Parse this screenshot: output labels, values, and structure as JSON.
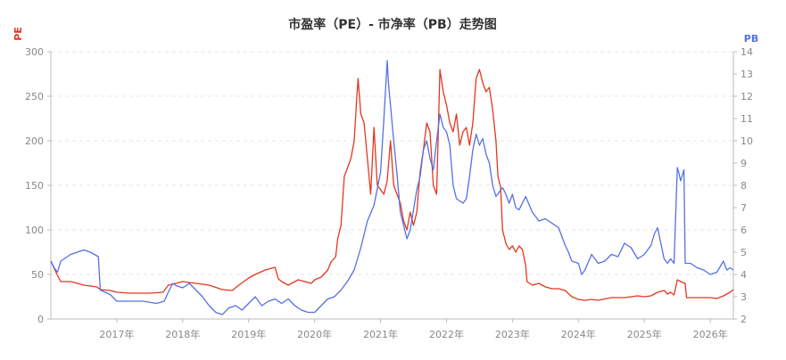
{
  "chart_data": {
    "type": "line",
    "title": "市盈率（PE）- 市净率（PB）走势图",
    "ylabel_left": "PE",
    "ylabel_right": "PB",
    "colors": {
      "pe": "#e5361e",
      "pb": "#5470e6"
    },
    "y_left": {
      "min": 0,
      "max": 300,
      "ticks": [
        0,
        50,
        100,
        150,
        200,
        250,
        300
      ]
    },
    "y_right": {
      "min": 2,
      "max": 14,
      "ticks": [
        2,
        3,
        4,
        5,
        6,
        7,
        8,
        9,
        10,
        11,
        12,
        13,
        14
      ]
    },
    "x": {
      "min": 2016.0,
      "max": 2026.35,
      "tick_labels": [
        "2017年",
        "2018年",
        "2019年",
        "2020年",
        "2021年",
        "2022年",
        "2023年",
        "2024年",
        "2025年",
        "2026年"
      ],
      "tick_values": [
        2017,
        2018,
        2019,
        2020,
        2021,
        2022,
        2023,
        2024,
        2025,
        2026
      ]
    },
    "series": [
      {
        "key": "pe",
        "axis": "left",
        "points": [
          [
            2016.0,
            65
          ],
          [
            2016.08,
            52
          ],
          [
            2016.15,
            42
          ],
          [
            2016.3,
            42
          ],
          [
            2016.5,
            38
          ],
          [
            2016.7,
            36
          ],
          [
            2016.75,
            33
          ],
          [
            2016.9,
            32
          ],
          [
            2017.0,
            30
          ],
          [
            2017.2,
            29
          ],
          [
            2017.5,
            29
          ],
          [
            2017.7,
            30
          ],
          [
            2017.78,
            38
          ],
          [
            2017.9,
            40
          ],
          [
            2018.0,
            42
          ],
          [
            2018.2,
            40
          ],
          [
            2018.4,
            38
          ],
          [
            2018.6,
            33
          ],
          [
            2018.75,
            32
          ],
          [
            2018.85,
            38
          ],
          [
            2019.0,
            46
          ],
          [
            2019.1,
            50
          ],
          [
            2019.25,
            55
          ],
          [
            2019.4,
            58
          ],
          [
            2019.45,
            45
          ],
          [
            2019.5,
            42
          ],
          [
            2019.6,
            38
          ],
          [
            2019.75,
            44
          ],
          [
            2019.85,
            42
          ],
          [
            2019.95,
            40
          ],
          [
            2020.0,
            44
          ],
          [
            2020.1,
            47
          ],
          [
            2020.2,
            55
          ],
          [
            2020.25,
            64
          ],
          [
            2020.32,
            70
          ],
          [
            2020.35,
            90
          ],
          [
            2020.4,
            105
          ],
          [
            2020.45,
            160
          ],
          [
            2020.5,
            170
          ],
          [
            2020.55,
            180
          ],
          [
            2020.6,
            200
          ],
          [
            2020.64,
            250
          ],
          [
            2020.66,
            270
          ],
          [
            2020.7,
            230
          ],
          [
            2020.75,
            220
          ],
          [
            2020.8,
            180
          ],
          [
            2020.85,
            140
          ],
          [
            2020.9,
            215
          ],
          [
            2020.95,
            150
          ],
          [
            2021.0,
            145
          ],
          [
            2021.05,
            140
          ],
          [
            2021.1,
            155
          ],
          [
            2021.15,
            200
          ],
          [
            2021.2,
            150
          ],
          [
            2021.25,
            140
          ],
          [
            2021.3,
            130
          ],
          [
            2021.35,
            110
          ],
          [
            2021.4,
            100
          ],
          [
            2021.45,
            120
          ],
          [
            2021.5,
            105
          ],
          [
            2021.55,
            120
          ],
          [
            2021.6,
            165
          ],
          [
            2021.65,
            190
          ],
          [
            2021.7,
            220
          ],
          [
            2021.75,
            210
          ],
          [
            2021.8,
            150
          ],
          [
            2021.85,
            140
          ],
          [
            2021.9,
            280
          ],
          [
            2021.95,
            255
          ],
          [
            2022.0,
            240
          ],
          [
            2022.05,
            220
          ],
          [
            2022.1,
            210
          ],
          [
            2022.15,
            230
          ],
          [
            2022.2,
            195
          ],
          [
            2022.25,
            210
          ],
          [
            2022.3,
            215
          ],
          [
            2022.35,
            195
          ],
          [
            2022.4,
            220
          ],
          [
            2022.45,
            270
          ],
          [
            2022.5,
            280
          ],
          [
            2022.55,
            265
          ],
          [
            2022.6,
            255
          ],
          [
            2022.65,
            260
          ],
          [
            2022.7,
            235
          ],
          [
            2022.75,
            200
          ],
          [
            2022.78,
            160
          ],
          [
            2022.82,
            148
          ],
          [
            2022.85,
            100
          ],
          [
            2022.9,
            85
          ],
          [
            2022.95,
            78
          ],
          [
            2023.0,
            82
          ],
          [
            2023.05,
            75
          ],
          [
            2023.1,
            82
          ],
          [
            2023.15,
            78
          ],
          [
            2023.2,
            60
          ],
          [
            2023.22,
            42
          ],
          [
            2023.3,
            38
          ],
          [
            2023.4,
            40
          ],
          [
            2023.5,
            36
          ],
          [
            2023.6,
            34
          ],
          [
            2023.7,
            34
          ],
          [
            2023.8,
            32
          ],
          [
            2023.9,
            25
          ],
          [
            2024.0,
            22
          ],
          [
            2024.1,
            21
          ],
          [
            2024.2,
            22
          ],
          [
            2024.3,
            21
          ],
          [
            2024.5,
            24
          ],
          [
            2024.7,
            24
          ],
          [
            2024.9,
            26
          ],
          [
            2025.0,
            25
          ],
          [
            2025.1,
            26
          ],
          [
            2025.2,
            30
          ],
          [
            2025.3,
            32
          ],
          [
            2025.35,
            28
          ],
          [
            2025.4,
            30
          ],
          [
            2025.45,
            27
          ],
          [
            2025.5,
            44
          ],
          [
            2025.55,
            42
          ],
          [
            2025.62,
            40
          ],
          [
            2025.64,
            24
          ],
          [
            2025.8,
            24
          ],
          [
            2026.0,
            24
          ],
          [
            2026.1,
            23
          ],
          [
            2026.2,
            26
          ],
          [
            2026.3,
            30
          ],
          [
            2026.35,
            33
          ]
        ]
      },
      {
        "key": "pb",
        "axis": "right",
        "points": [
          [
            2016.0,
            4.6
          ],
          [
            2016.05,
            4.3
          ],
          [
            2016.1,
            4.1
          ],
          [
            2016.15,
            4.6
          ],
          [
            2016.2,
            4.7
          ],
          [
            2016.3,
            4.9
          ],
          [
            2016.4,
            5.0
          ],
          [
            2016.5,
            5.1
          ],
          [
            2016.6,
            5.0
          ],
          [
            2016.72,
            4.8
          ],
          [
            2016.75,
            3.3
          ],
          [
            2016.9,
            3.1
          ],
          [
            2017.0,
            2.8
          ],
          [
            2017.2,
            2.8
          ],
          [
            2017.4,
            2.8
          ],
          [
            2017.6,
            2.7
          ],
          [
            2017.72,
            2.8
          ],
          [
            2017.78,
            3.2
          ],
          [
            2017.85,
            3.6
          ],
          [
            2017.9,
            3.5
          ],
          [
            2018.0,
            3.4
          ],
          [
            2018.1,
            3.6
          ],
          [
            2018.2,
            3.3
          ],
          [
            2018.3,
            3.0
          ],
          [
            2018.4,
            2.6
          ],
          [
            2018.5,
            2.3
          ],
          [
            2018.6,
            2.2
          ],
          [
            2018.7,
            2.5
          ],
          [
            2018.8,
            2.6
          ],
          [
            2018.9,
            2.4
          ],
          [
            2019.0,
            2.7
          ],
          [
            2019.1,
            3.0
          ],
          [
            2019.2,
            2.6
          ],
          [
            2019.3,
            2.8
          ],
          [
            2019.4,
            2.9
          ],
          [
            2019.5,
            2.7
          ],
          [
            2019.6,
            2.9
          ],
          [
            2019.7,
            2.6
          ],
          [
            2019.8,
            2.4
          ],
          [
            2019.9,
            2.3
          ],
          [
            2020.0,
            2.3
          ],
          [
            2020.1,
            2.6
          ],
          [
            2020.2,
            2.9
          ],
          [
            2020.3,
            3.0
          ],
          [
            2020.4,
            3.3
          ],
          [
            2020.5,
            3.7
          ],
          [
            2020.6,
            4.2
          ],
          [
            2020.7,
            5.2
          ],
          [
            2020.8,
            6.4
          ],
          [
            2020.9,
            7.1
          ],
          [
            2021.0,
            8.6
          ],
          [
            2021.05,
            11.0
          ],
          [
            2021.1,
            13.6
          ],
          [
            2021.12,
            12.6
          ],
          [
            2021.2,
            10.0
          ],
          [
            2021.25,
            8.5
          ],
          [
            2021.3,
            6.8
          ],
          [
            2021.35,
            6.2
          ],
          [
            2021.4,
            5.6
          ],
          [
            2021.45,
            6.0
          ],
          [
            2021.5,
            6.9
          ],
          [
            2021.55,
            7.8
          ],
          [
            2021.6,
            8.4
          ],
          [
            2021.65,
            9.6
          ],
          [
            2021.7,
            10.0
          ],
          [
            2021.75,
            9.2
          ],
          [
            2021.8,
            8.7
          ],
          [
            2021.85,
            10.0
          ],
          [
            2021.9,
            11.2
          ],
          [
            2021.95,
            10.6
          ],
          [
            2022.0,
            10.4
          ],
          [
            2022.05,
            9.8
          ],
          [
            2022.1,
            8.0
          ],
          [
            2022.15,
            7.4
          ],
          [
            2022.2,
            7.3
          ],
          [
            2022.25,
            7.2
          ],
          [
            2022.3,
            7.4
          ],
          [
            2022.35,
            8.4
          ],
          [
            2022.4,
            9.6
          ],
          [
            2022.45,
            10.3
          ],
          [
            2022.5,
            9.8
          ],
          [
            2022.55,
            10.1
          ],
          [
            2022.6,
            9.4
          ],
          [
            2022.65,
            9.0
          ],
          [
            2022.7,
            8.0
          ],
          [
            2022.75,
            7.5
          ],
          [
            2022.8,
            7.7
          ],
          [
            2022.85,
            7.9
          ],
          [
            2022.9,
            7.6
          ],
          [
            2022.95,
            7.2
          ],
          [
            2023.0,
            7.6
          ],
          [
            2023.05,
            7.0
          ],
          [
            2023.1,
            6.9
          ],
          [
            2023.2,
            7.5
          ],
          [
            2023.3,
            6.8
          ],
          [
            2023.4,
            6.4
          ],
          [
            2023.5,
            6.5
          ],
          [
            2023.6,
            6.3
          ],
          [
            2023.7,
            6.1
          ],
          [
            2023.8,
            5.3
          ],
          [
            2023.85,
            5.0
          ],
          [
            2023.9,
            4.6
          ],
          [
            2024.0,
            4.5
          ],
          [
            2024.05,
            4.0
          ],
          [
            2024.1,
            4.2
          ],
          [
            2024.2,
            4.9
          ],
          [
            2024.3,
            4.5
          ],
          [
            2024.4,
            4.6
          ],
          [
            2024.5,
            4.9
          ],
          [
            2024.6,
            4.8
          ],
          [
            2024.7,
            5.4
          ],
          [
            2024.8,
            5.2
          ],
          [
            2024.9,
            4.7
          ],
          [
            2025.0,
            4.9
          ],
          [
            2025.1,
            5.3
          ],
          [
            2025.15,
            5.8
          ],
          [
            2025.2,
            6.1
          ],
          [
            2025.25,
            5.4
          ],
          [
            2025.3,
            4.7
          ],
          [
            2025.35,
            4.5
          ],
          [
            2025.4,
            4.7
          ],
          [
            2025.45,
            4.5
          ],
          [
            2025.5,
            8.8
          ],
          [
            2025.52,
            8.6
          ],
          [
            2025.55,
            8.2
          ],
          [
            2025.6,
            8.7
          ],
          [
            2025.62,
            4.5
          ],
          [
            2025.7,
            4.5
          ],
          [
            2025.8,
            4.3
          ],
          [
            2025.9,
            4.2
          ],
          [
            2026.0,
            4.0
          ],
          [
            2026.1,
            4.1
          ],
          [
            2026.2,
            4.6
          ],
          [
            2026.25,
            4.2
          ],
          [
            2026.3,
            4.3
          ],
          [
            2026.35,
            4.2
          ]
        ]
      }
    ]
  }
}
